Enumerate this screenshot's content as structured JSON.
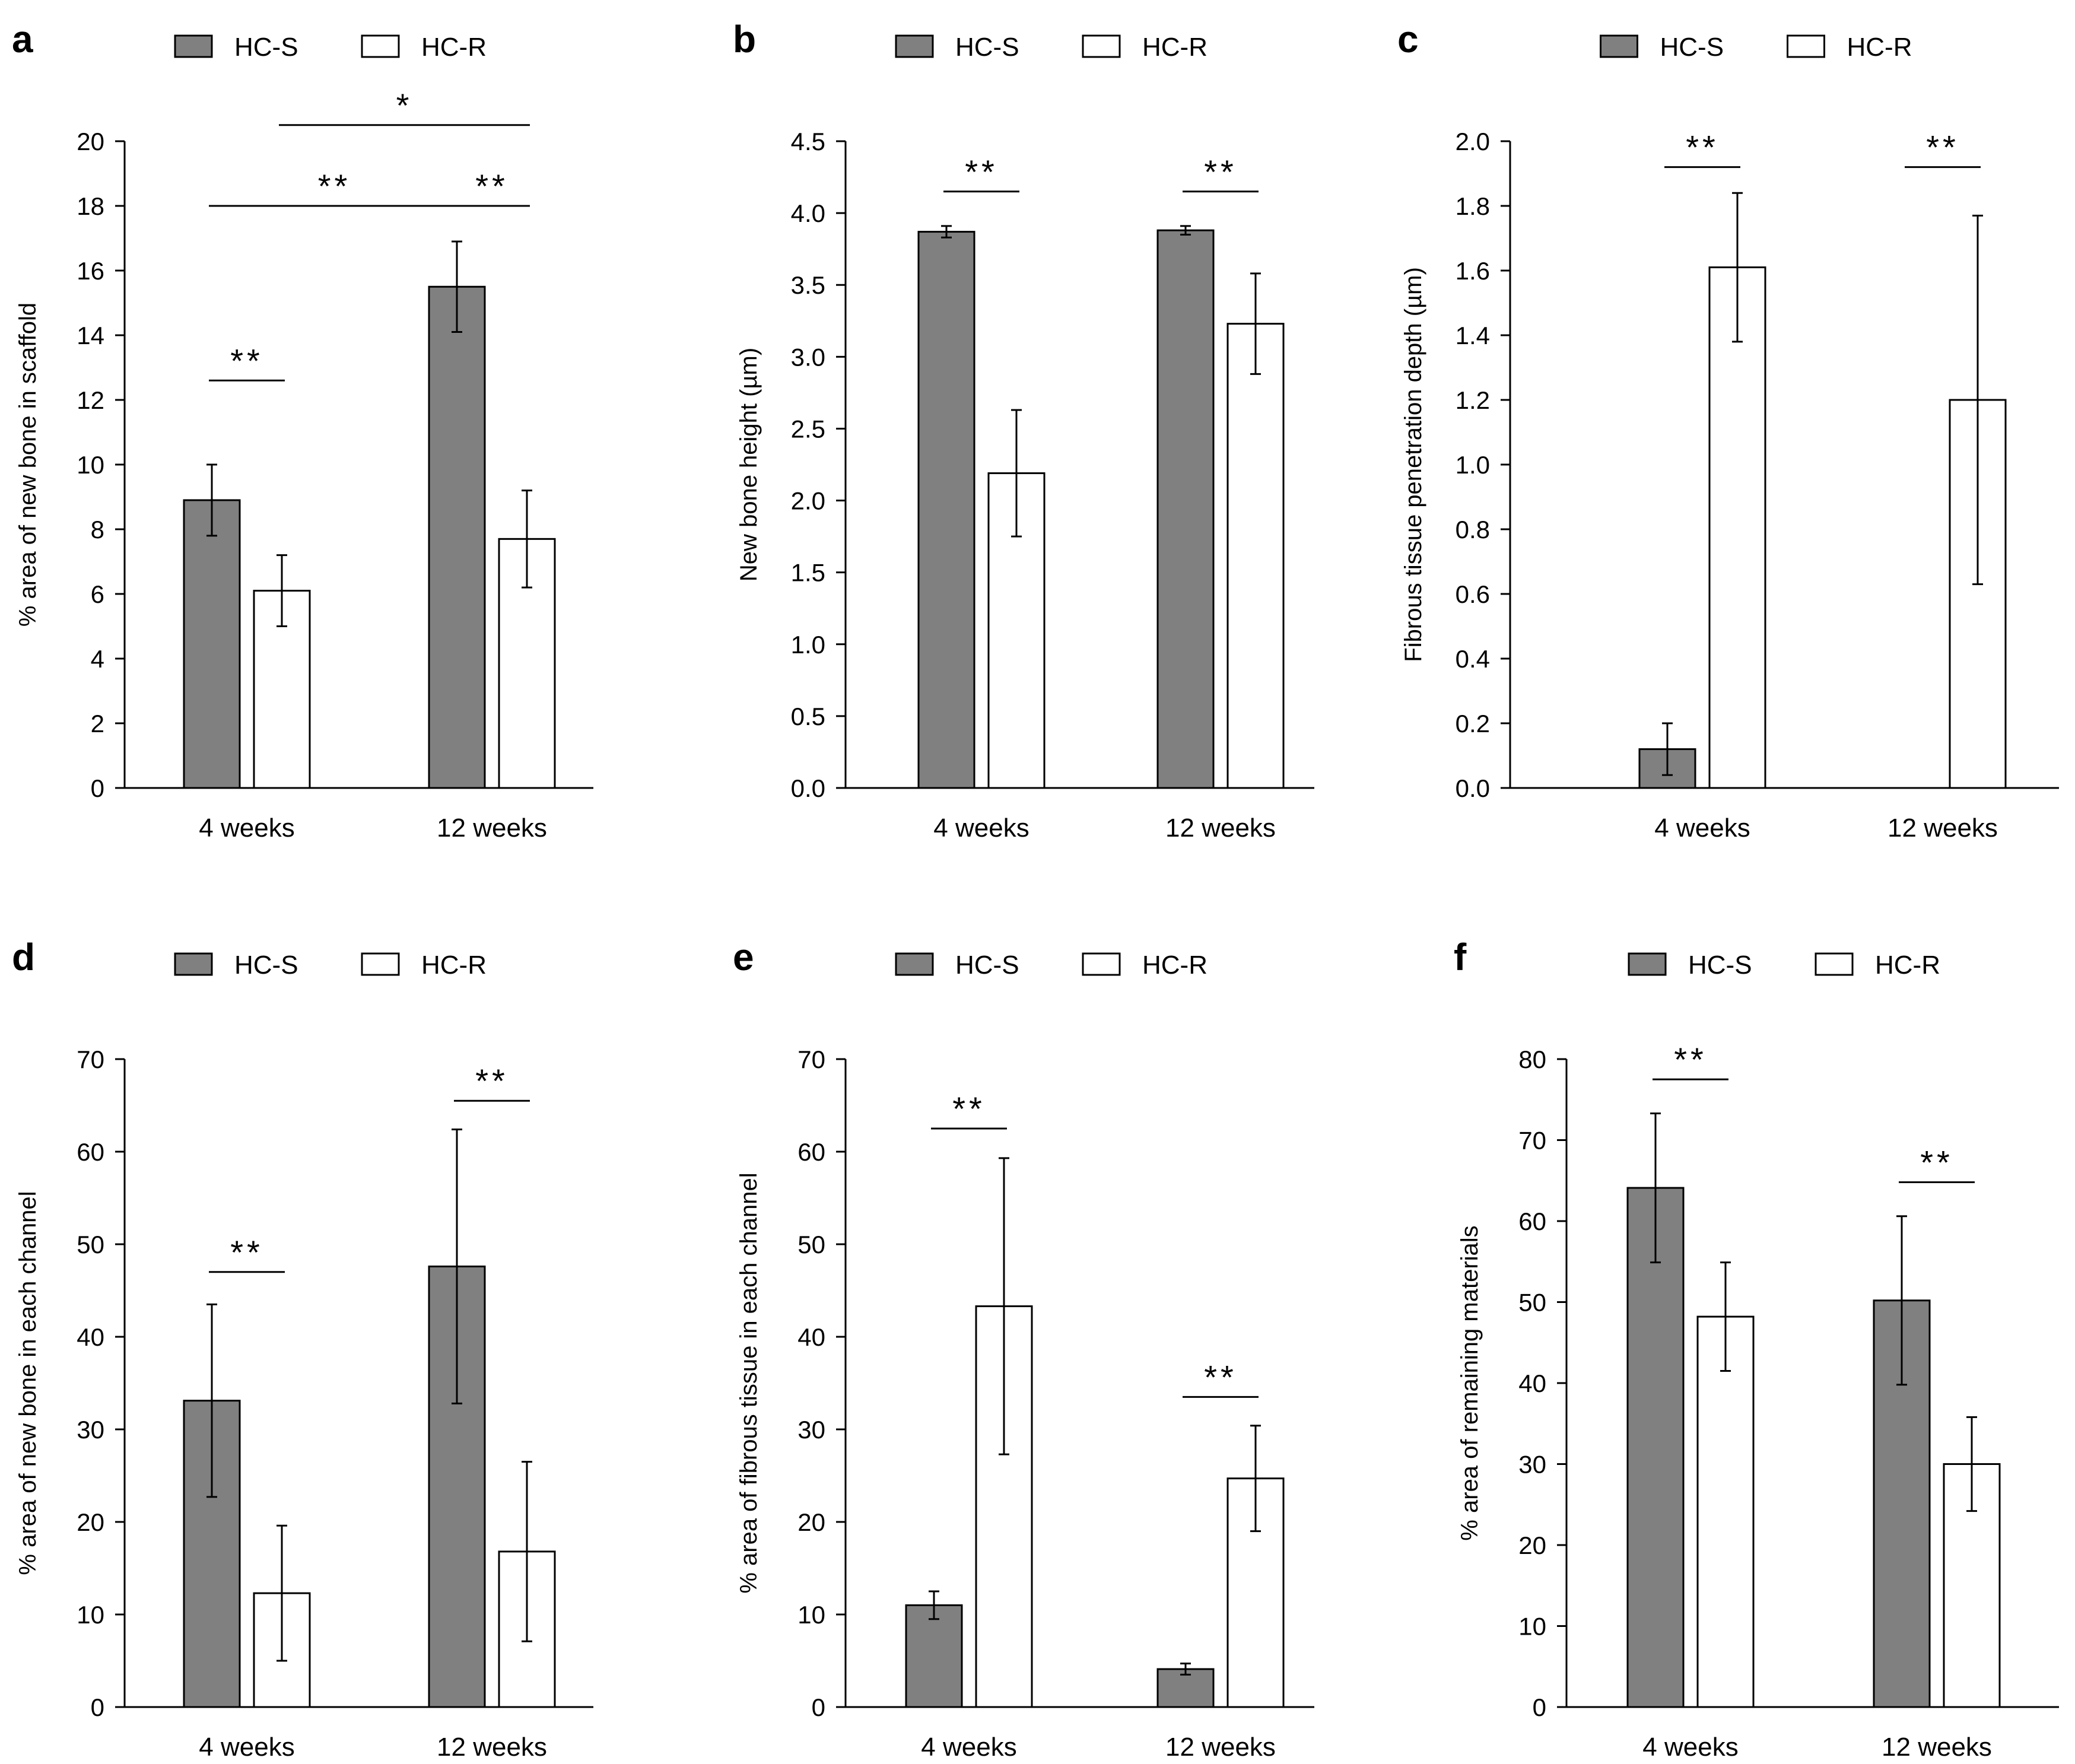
{
  "colors": {
    "hcs": "#808080",
    "hcr": "#ffffff",
    "stroke": "#000000"
  },
  "chart_data": [
    {
      "type": "bar",
      "id": "a",
      "panel_label": "a",
      "legend": [
        "HC-S",
        "HC-R"
      ],
      "categories": [
        "4 weeks",
        "12 weeks"
      ],
      "ylabel": "% area of new bone in scaffold",
      "ylim": [
        0,
        20
      ],
      "yticks": [
        "0",
        "2",
        "4",
        "6",
        "8",
        "10",
        "12",
        "14",
        "16",
        "18",
        "20"
      ],
      "series": [
        {
          "name": "HC-S",
          "values": [
            8.9,
            15.5
          ],
          "errors": [
            1.1,
            1.4
          ]
        },
        {
          "name": "HC-R",
          "values": [
            6.1,
            7.7
          ],
          "errors": [
            1.1,
            1.5
          ]
        }
      ],
      "annotations": [
        {
          "text": "**",
          "level": 12.6,
          "from": [
            0,
            0
          ],
          "to": [
            0,
            1
          ]
        },
        {
          "text": "**",
          "level": 18.0,
          "from": [
            0,
            0
          ],
          "to": [
            1,
            0
          ]
        },
        {
          "text": "**",
          "level": 18.0,
          "from": [
            1,
            0
          ],
          "to": [
            1,
            1
          ]
        },
        {
          "text": "*",
          "level": 20.5,
          "from": [
            0,
            1
          ],
          "to": [
            1,
            1
          ]
        }
      ]
    },
    {
      "type": "bar",
      "id": "b",
      "panel_label": "b",
      "legend": [
        "HC-S",
        "HC-R"
      ],
      "categories": [
        "4 weeks",
        "12 weeks"
      ],
      "ylabel": "New bone height (µm)",
      "ylim": [
        0,
        4.5
      ],
      "yticks": [
        "0.0",
        "0.5",
        "1.0",
        "1.5",
        "2.0",
        "2.5",
        "3.0",
        "3.5",
        "4.0",
        "4.5"
      ],
      "series": [
        {
          "name": "HC-S",
          "values": [
            3.87,
            3.88
          ],
          "errors": [
            0.04,
            0.03
          ]
        },
        {
          "name": "HC-R",
          "values": [
            2.19,
            3.23
          ],
          "errors": [
            0.44,
            0.35
          ]
        }
      ],
      "annotations": [
        {
          "text": "**",
          "level": 4.15,
          "from": [
            0,
            0
          ],
          "to": [
            0,
            1
          ]
        },
        {
          "text": "**",
          "level": 4.15,
          "from": [
            1,
            0
          ],
          "to": [
            1,
            1
          ]
        }
      ]
    },
    {
      "type": "bar",
      "id": "c",
      "panel_label": "c",
      "legend": [
        "HC-S",
        "HC-R"
      ],
      "categories": [
        "4 weeks",
        "12 weeks"
      ],
      "ylabel": "Fibrous tissue penetration depth (µm)",
      "ylim": [
        0,
        2.0
      ],
      "yticks": [
        "0.0",
        "0.2",
        "0.4",
        "0.6",
        "0.8",
        "1.0",
        "1.2",
        "1.4",
        "1.6",
        "1.8",
        "2.0"
      ],
      "series": [
        {
          "name": "HC-S",
          "values": [
            0.12,
            0
          ],
          "errors": [
            0.08,
            0
          ]
        },
        {
          "name": "HC-R",
          "values": [
            1.61,
            1.2
          ],
          "errors": [
            0.23,
            0.57
          ]
        }
      ],
      "annotations": [
        {
          "text": "**",
          "level": 1.92,
          "from": [
            0,
            0
          ],
          "to": [
            0,
            1
          ]
        },
        {
          "text": "**",
          "level": 1.92,
          "from": [
            1,
            0
          ],
          "to": [
            1,
            1
          ]
        }
      ]
    },
    {
      "type": "bar",
      "id": "d",
      "panel_label": "d",
      "legend": [
        "HC-S",
        "HC-R"
      ],
      "categories": [
        "4 weeks",
        "12 weeks"
      ],
      "ylabel": "% area of new bone in each channel",
      "ylim": [
        0,
        70
      ],
      "yticks": [
        "0",
        "10",
        "20",
        "30",
        "40",
        "50",
        "60",
        "70"
      ],
      "series": [
        {
          "name": "HC-S",
          "values": [
            33.1,
            47.6
          ],
          "errors": [
            10.4,
            14.8
          ]
        },
        {
          "name": "HC-R",
          "values": [
            12.3,
            16.8
          ],
          "errors": [
            7.3,
            9.7
          ]
        }
      ],
      "annotations": [
        {
          "text": "**",
          "level": 47.0,
          "from": [
            0,
            0
          ],
          "to": [
            0,
            1
          ]
        },
        {
          "text": "**",
          "level": 65.5,
          "from": [
            1,
            0
          ],
          "to": [
            1,
            1
          ]
        }
      ]
    },
    {
      "type": "bar",
      "id": "e",
      "panel_label": "e",
      "legend": [
        "HC-S",
        "HC-R"
      ],
      "categories": [
        "4 weeks",
        "12 weeks"
      ],
      "ylabel": "% area of fibrous tissue in each channel",
      "ylim": [
        0,
        70
      ],
      "yticks": [
        "0",
        "10",
        "20",
        "30",
        "40",
        "50",
        "60",
        "70"
      ],
      "series": [
        {
          "name": "HC-S",
          "values": [
            11.0,
            4.1
          ],
          "errors": [
            1.5,
            0.6
          ]
        },
        {
          "name": "HC-R",
          "values": [
            43.3,
            24.7
          ],
          "errors": [
            16.0,
            5.7
          ]
        }
      ],
      "annotations": [
        {
          "text": "**",
          "level": 62.5,
          "from": [
            0,
            0
          ],
          "to": [
            0,
            1
          ]
        },
        {
          "text": "**",
          "level": 33.5,
          "from": [
            1,
            0
          ],
          "to": [
            1,
            1
          ]
        }
      ]
    },
    {
      "type": "bar",
      "id": "f",
      "panel_label": "f",
      "legend": [
        "HC-S",
        "HC-R"
      ],
      "categories": [
        "4 weeks",
        "12 weeks"
      ],
      "ylabel": "% area of remaining materials",
      "ylim": [
        0,
        80
      ],
      "yticks": [
        "0",
        "10",
        "20",
        "30",
        "40",
        "50",
        "60",
        "70",
        "80"
      ],
      "series": [
        {
          "name": "HC-S",
          "values": [
            64.1,
            50.2
          ],
          "errors": [
            9.2,
            10.4
          ]
        },
        {
          "name": "HC-R",
          "values": [
            48.2,
            30.0
          ],
          "errors": [
            6.7,
            5.8
          ]
        }
      ],
      "annotations": [
        {
          "text": "**",
          "level": 77.5,
          "from": [
            0,
            0
          ],
          "to": [
            0,
            1
          ]
        },
        {
          "text": "**",
          "level": 64.8,
          "from": [
            1,
            0
          ],
          "to": [
            1,
            1
          ]
        }
      ]
    }
  ]
}
